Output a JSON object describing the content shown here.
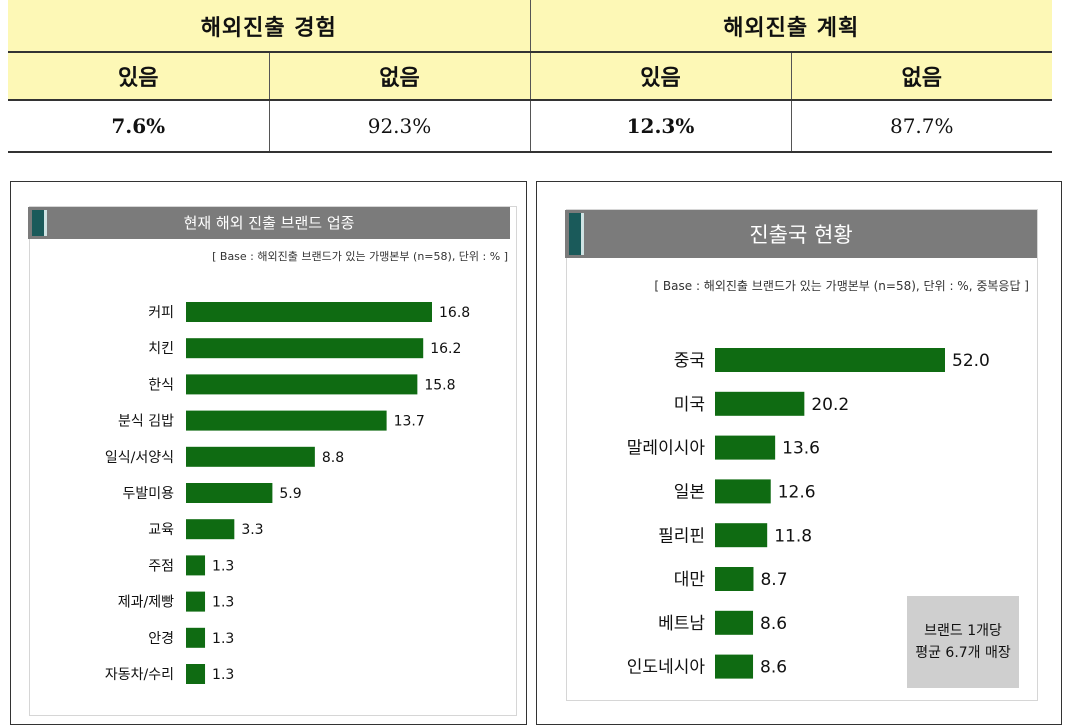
{
  "table": {
    "group_headers": [
      "해외진출 경험",
      "해외진출 계획"
    ],
    "sub_headers": [
      "있음",
      "없음",
      "있음",
      "없음"
    ],
    "values": [
      "7.6%",
      "92.3%",
      "12.3%",
      "87.7%"
    ]
  },
  "left_panel": {
    "title": "현재 해외 진출 브랜드 업종",
    "base_note": "[ Base : 해외진출 브랜드가 있는 가맹본부 (n=58),  단위 : % ]"
  },
  "right_panel": {
    "title": "진출국 현황",
    "base_note": "[ Base : 해외진출 브랜드가 있는 가맹본부 (n=58),  단위 : %, 중복응답 ]",
    "callout_line1": "브랜드 1개당",
    "callout_line2": "평균 6.7개 매장"
  },
  "chart_data": [
    {
      "type": "bar",
      "orientation": "horizontal",
      "title": "현재 해외 진출 브랜드 업종",
      "categories": [
        "커피",
        "치킨",
        "한식",
        "분식 김밥",
        "일식/서양식",
        "두발미용",
        "교육",
        "주점",
        "제과/제빵",
        "안경",
        "자동차/수리"
      ],
      "values": [
        16.8,
        16.2,
        15.8,
        13.7,
        8.8,
        5.9,
        3.3,
        1.3,
        1.3,
        1.3,
        1.3
      ],
      "value_labels": [
        "16.8",
        "16.2",
        "15.8",
        "13.7",
        "8.8",
        "5.9",
        "3.3",
        "1.3",
        "1.3",
        "1.3",
        "1.3"
      ],
      "bar_color": "#0f6b12",
      "xlim": [
        0,
        16.8
      ]
    },
    {
      "type": "bar",
      "orientation": "horizontal",
      "title": "진출국 현황",
      "categories": [
        "중국",
        "미국",
        "말레이시아",
        "일본",
        "필리핀",
        "대만",
        "베트남",
        "인도네시아"
      ],
      "values": [
        52.0,
        20.2,
        13.6,
        12.6,
        11.8,
        8.7,
        8.6,
        8.6
      ],
      "value_labels": [
        "52.0",
        "20.2",
        "13.6",
        "12.6",
        "11.8",
        "8.7",
        "8.6",
        "8.6"
      ],
      "bar_color": "#0f6b12",
      "xlim": [
        0,
        52.0
      ]
    }
  ]
}
